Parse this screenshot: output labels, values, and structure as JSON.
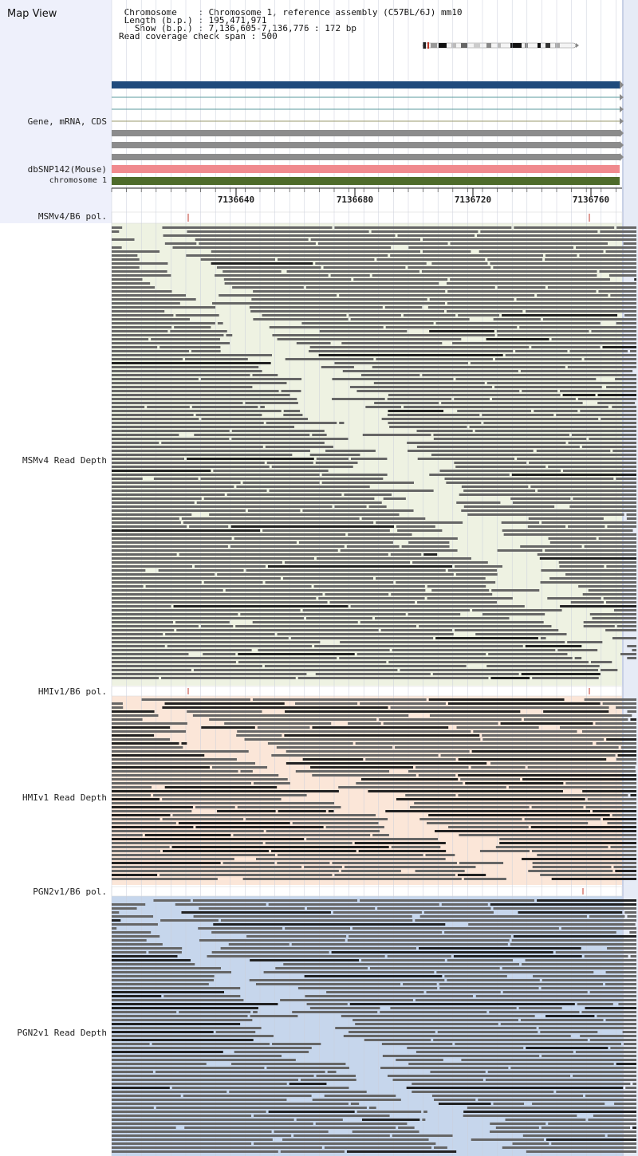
{
  "title": "Map View",
  "info": {
    "chromosome_key": "Chromosome",
    "chromosome_val": "Chromosome 1, reference assembly (C57BL/6J) mm10",
    "length_key": "Length (b.p.)",
    "length_val": "195,471,971",
    "show_key": "Show (b.p.)",
    "show_val": "7,136,605-7,136,776 : 172 bp",
    "span_key": "Read coverage check span",
    "span_val": "500"
  },
  "tracks": {
    "gene_label": "Gene, mRNA, CDS",
    "dbsnp_label": "dbSNP142(Mouse)",
    "chrom_label": "chromosome 1"
  },
  "axis": {
    "ticks": [
      "7136640",
      "7136680",
      "7136720",
      "7136760"
    ]
  },
  "panels": [
    {
      "pol_label": "MSMv4/B6 pol.",
      "depth_label": "MSMv4 Read Depth",
      "bg": "#eef2e2"
    },
    {
      "pol_label": "HMIv1/B6 pol.",
      "depth_label": "HMIv1 Read Depth",
      "bg": "#fbe6d8"
    },
    {
      "pol_label": "PGN2v1/B6 pol.",
      "depth_label": "PGN2v1 Read Depth",
      "bg": "#c6d6ec"
    }
  ],
  "colors": {
    "gene_bar": "#1f4a7c",
    "gene_line": "#5a9a9e",
    "mrna_bar": "#8c8c8c",
    "dbsnp_bar": "#f08a8e",
    "chrom_bar": "#4e6b2a",
    "read": "#666666",
    "read_dark": "#222222",
    "snp_mark": "#c0392b"
  }
}
